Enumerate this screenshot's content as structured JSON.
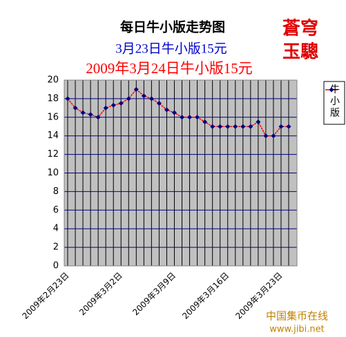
{
  "chart_data": {
    "type": "line",
    "title": "每日牛小版走势图",
    "subtitle": "3月23日牛小版15元",
    "subtitle2": "2009年3月24日牛小版15元",
    "logo": [
      "蒼穹",
      "玉驄"
    ],
    "watermark": [
      "中国集币在线",
      "www.jibi.net"
    ],
    "categories": [
      "2009年2月23日",
      null,
      null,
      null,
      null,
      null,
      null,
      "2009年3月2日",
      null,
      null,
      null,
      null,
      null,
      null,
      "2009年3月9日",
      null,
      null,
      null,
      null,
      null,
      null,
      "2009年3月16日",
      null,
      null,
      null,
      null,
      null,
      null,
      "2009年3月23日",
      null
    ],
    "series": [
      {
        "name": "牛小版",
        "color": "#ff0000",
        "marker_color": "#000080",
        "values": [
          18,
          17,
          16.5,
          16.3,
          16,
          17,
          17.3,
          17.5,
          18,
          19,
          18.3,
          18,
          17.5,
          16.8,
          16.5,
          16,
          16,
          16,
          15.5,
          15,
          15,
          15,
          15,
          15,
          15,
          15.5,
          14,
          14,
          15,
          15
        ]
      }
    ],
    "ylim": [
      0,
      20
    ],
    "yticks": [
      0,
      2,
      4,
      6,
      8,
      10,
      12,
      14,
      16,
      18,
      20
    ],
    "grid": true,
    "legend": "right"
  }
}
